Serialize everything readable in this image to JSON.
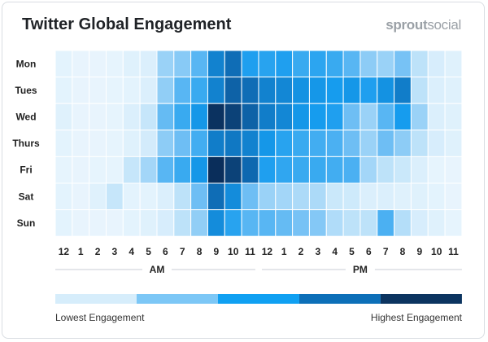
{
  "header": {
    "title": "Twitter Global Engagement",
    "brand_bold": "sprout",
    "brand_light": "social"
  },
  "chart_data": {
    "type": "heatmap",
    "title": "Twitter Global Engagement",
    "days": [
      "Mon",
      "Tues",
      "Wed",
      "Thurs",
      "Fri",
      "Sat",
      "Sun"
    ],
    "hours": [
      "12",
      "1",
      "2",
      "3",
      "4",
      "5",
      "6",
      "7",
      "8",
      "9",
      "10",
      "11",
      "12",
      "1",
      "2",
      "3",
      "4",
      "5",
      "6",
      "7",
      "8",
      "9",
      "10",
      "11"
    ],
    "periods": [
      "AM",
      "PM"
    ],
    "scale": "engagement level 0 (lowest) to 1 (highest)",
    "values": [
      [
        0.06,
        0.04,
        0.04,
        0.05,
        0.08,
        0.1,
        0.3,
        0.34,
        0.45,
        0.7,
        0.78,
        0.58,
        0.56,
        0.58,
        0.52,
        0.55,
        0.52,
        0.45,
        0.33,
        0.3,
        0.38,
        0.22,
        0.12,
        0.08
      ],
      [
        0.06,
        0.04,
        0.04,
        0.05,
        0.06,
        0.1,
        0.32,
        0.45,
        0.52,
        0.7,
        0.82,
        0.78,
        0.7,
        0.68,
        0.64,
        0.62,
        0.6,
        0.62,
        0.58,
        0.64,
        0.72,
        0.22,
        0.1,
        0.08
      ],
      [
        0.08,
        0.04,
        0.04,
        0.05,
        0.1,
        0.2,
        0.42,
        0.52,
        0.62,
        0.97,
        0.92,
        0.82,
        0.72,
        0.68,
        0.62,
        0.6,
        0.58,
        0.4,
        0.3,
        0.45,
        0.6,
        0.3,
        0.1,
        0.08
      ],
      [
        0.06,
        0.04,
        0.04,
        0.05,
        0.08,
        0.14,
        0.33,
        0.4,
        0.5,
        0.72,
        0.74,
        0.7,
        0.62,
        0.56,
        0.52,
        0.5,
        0.48,
        0.4,
        0.3,
        0.4,
        0.33,
        0.22,
        0.12,
        0.08
      ],
      [
        0.05,
        0.04,
        0.05,
        0.05,
        0.2,
        0.28,
        0.45,
        0.52,
        0.62,
        0.98,
        0.92,
        0.8,
        0.58,
        0.54,
        0.52,
        0.52,
        0.5,
        0.48,
        0.28,
        0.22,
        0.18,
        0.1,
        0.05,
        0.04
      ],
      [
        0.06,
        0.04,
        0.08,
        0.2,
        0.06,
        0.06,
        0.1,
        0.22,
        0.4,
        0.78,
        0.66,
        0.4,
        0.3,
        0.28,
        0.26,
        0.26,
        0.18,
        0.16,
        0.1,
        0.1,
        0.08,
        0.08,
        0.06,
        0.04
      ],
      [
        0.06,
        0.04,
        0.04,
        0.04,
        0.06,
        0.08,
        0.12,
        0.22,
        0.32,
        0.66,
        0.56,
        0.45,
        0.45,
        0.42,
        0.38,
        0.35,
        0.25,
        0.22,
        0.22,
        0.48,
        0.24,
        0.12,
        0.08,
        0.05
      ]
    ]
  },
  "legend": {
    "colors": [
      "#d6edfb",
      "#7cc7f6",
      "#10a0f2",
      "#0d6fb8",
      "#0c3460"
    ],
    "low_label": "Lowest Engagement",
    "high_label": "Highest Engagement"
  }
}
